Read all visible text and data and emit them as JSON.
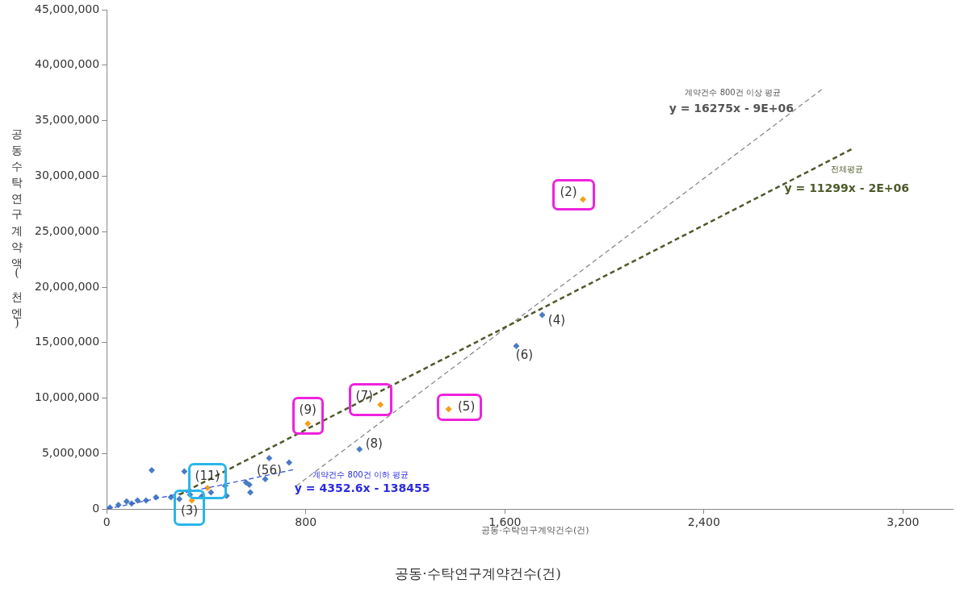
{
  "chart_data": {
    "type": "scatter",
    "xlabel": "공동·수탁연구계약건수(건)",
    "ylabel": "공동수탁연구계약액(천엔)",
    "xlim": [
      0,
      3400
    ],
    "xticks": [
      0,
      800,
      {
        "value": 1600,
        "label": "1,600"
      },
      {
        "value": 2400,
        "label": "2,400"
      },
      {
        "value": 3200,
        "label": "3,200"
      }
    ],
    "ylim": [
      0,
      45000000
    ],
    "yticks": [
      0,
      {
        "value": 5000000,
        "label": "5,000,000"
      },
      {
        "value": 10000000,
        "label": "10,000,000"
      },
      {
        "value": 15000000,
        "label": "15,000,000"
      },
      {
        "value": 20000000,
        "label": "20,000,000"
      },
      {
        "value": 25000000,
        "label": "25,000,000"
      },
      {
        "value": 30000000,
        "label": "30,000,000"
      },
      {
        "value": 35000000,
        "label": "35,000,000"
      },
      {
        "value": 40000000,
        "label": "40,000,000"
      },
      {
        "value": 45000000,
        "label": "45,000,000"
      }
    ],
    "grid": false,
    "legend": false,
    "marker": "diamond",
    "series": [
      {
        "color": "#4a7cc4",
        "x": [
          13,
          47,
          80,
          100,
          124,
          158,
          181,
          198,
          258,
          292,
          312,
          335,
          382,
          419,
          476,
          482,
          560,
          573,
          577,
          637,
          653,
          733,
          1016,
          1646,
          1750
        ],
        "values": [
          150000,
          380000,
          690000,
          500000,
          770000,
          770000,
          3500000,
          1070000,
          1070000,
          900000,
          3400000,
          1300000,
          1150000,
          1500000,
          2100000,
          1200000,
          2400000,
          2200000,
          1500000,
          2700000,
          4600000,
          4200000,
          5400000,
          14700000,
          17500000
        ]
      },
      {
        "color": "#f5a01a",
        "x": [
          405,
          342,
          808,
          1100,
          1374,
          1914
        ],
        "values": [
          1900000,
          770000,
          7700000,
          9400000,
          9000000,
          27900000
        ]
      },
      {
        "type": "line",
        "color": "#4d5a2a",
        "line_style": "dashed",
        "marker": "none",
        "x": [
          292,
          3000
        ],
        "values": [
          1300000,
          32500000
        ]
      },
      {
        "type": "line",
        "color": "#8a8a8a",
        "line_style": "dashed",
        "marker": "none",
        "x": [
          761,
          2873
        ],
        "values": [
          2070000,
          37800000
        ]
      },
      {
        "type": "line",
        "color": "#3a5ad8",
        "line_style": "dashed",
        "marker": "none",
        "x": [
          0,
          761
        ],
        "values": [
          0,
          3600000
        ]
      }
    ],
    "annotations": [
      {
        "text": "(2)",
        "x": 1914,
        "y": 27900000
      },
      {
        "text": "(4)",
        "x": 1750,
        "y": 17500000
      },
      {
        "text": "(6)",
        "x": 1646,
        "y": 14700000
      },
      {
        "text": "(5)",
        "x": 1374,
        "y": 9000000
      },
      {
        "text": "(7)",
        "x": 1100,
        "y": 9400000
      },
      {
        "text": "(9)",
        "x": 808,
        "y": 7700000
      },
      {
        "text": "(8)",
        "x": 1016,
        "y": 5400000
      },
      {
        "text": "(56)",
        "x": 653,
        "y": 4600000
      },
      {
        "text": "(11)",
        "x": 405,
        "y": 1900000
      },
      {
        "text": "(3)",
        "x": 342,
        "y": 770000
      },
      {
        "text": "계약건수 800건 이상 평균",
        "x": 2800,
        "y": 36500000
      },
      {
        "text": "y = 16275x - 9E+06",
        "x": 2800,
        "y": 36500000
      },
      {
        "text": "전체평균",
        "x": 3000,
        "y": 32500000
      },
      {
        "text": "y = 11299x - 2E+06",
        "x": 3000,
        "y": 32500000
      },
      {
        "text": "계약건수 800건 이하 평균",
        "x": 761,
        "y": 3600000
      },
      {
        "text": "y = 4352.6x - 138455",
        "x": 761,
        "y": 3600000
      },
      "공동·수탁연구계약건수(건)"
    ]
  }
}
